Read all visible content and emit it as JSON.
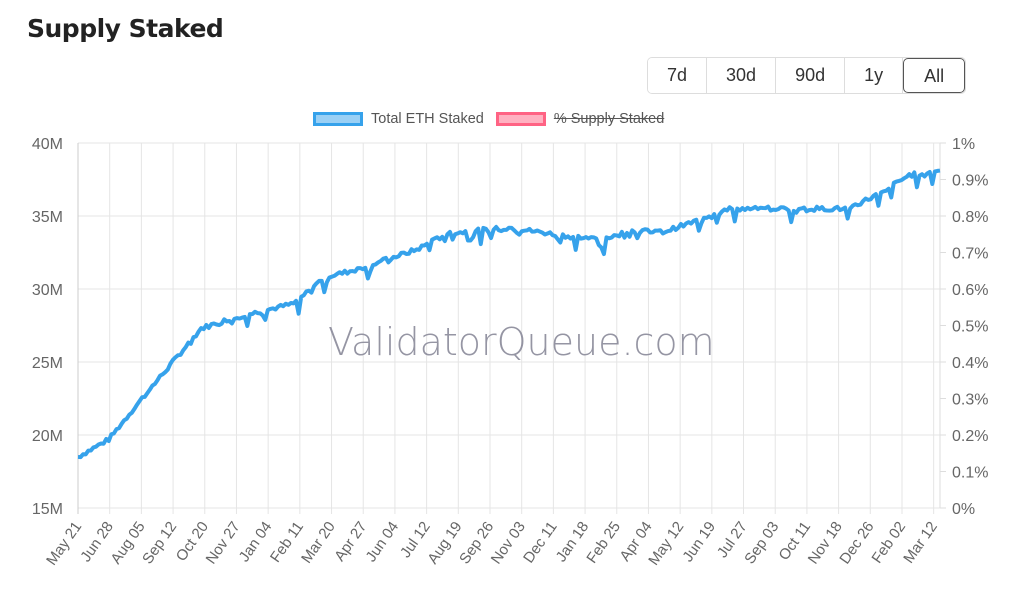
{
  "title": "Supply Staked",
  "range_buttons": [
    "7d",
    "30d",
    "90d",
    "1y",
    "All"
  ],
  "active_range": "All",
  "watermark": "ValidatorQueue.com",
  "colors": {
    "series": "#36a2eb",
    "series_fill": "#9ad0f5",
    "hidden_series": "#ff6384",
    "hidden_fill": "#ffb1c1"
  },
  "chart_data": {
    "type": "line",
    "title": "",
    "legend": {
      "position": "top",
      "entries": [
        {
          "label": "Total ETH Staked",
          "hidden": false
        },
        {
          "label": "% Supply Staked",
          "hidden": true
        }
      ]
    },
    "x_tick_labels": [
      "May 21",
      "Jun 28",
      "Aug 05",
      "Sep 12",
      "Oct 20",
      "Nov 27",
      "Jan 04",
      "Feb 11",
      "Mar 20",
      "Apr 27",
      "Jun 04",
      "Jul 12",
      "Aug 19",
      "Sep 26",
      "Nov 03",
      "Dec 11",
      "Jan 18",
      "Feb 25",
      "Apr 04",
      "May 12",
      "Jun 19",
      "Jul 27",
      "Sep 03",
      "Oct 11",
      "Nov 18",
      "Dec 26",
      "Feb 02",
      "Mar 12"
    ],
    "y_left": {
      "min": 15000000,
      "max": 40000000,
      "ticks": [
        "15M",
        "20M",
        "25M",
        "30M",
        "35M",
        "40M"
      ]
    },
    "y_right": {
      "min": 0,
      "max": 1,
      "ticks": [
        "0%",
        "0.1%",
        "0.2%",
        "0.3%",
        "0.4%",
        "0.5%",
        "0.6%",
        "0.7%",
        "0.8%",
        "0.9%",
        "1%"
      ]
    },
    "grid": true,
    "series": [
      {
        "name": "Total ETH Staked",
        "values": [
          18.5,
          19.7,
          22.3,
          24.8,
          27.3,
          28.0,
          28.5,
          29.0,
          30.8,
          31.3,
          32.0,
          32.7,
          33.8,
          34.0,
          34.2,
          33.9,
          33.6,
          33.4,
          34.0,
          33.9,
          34.6,
          35.5,
          35.5,
          35.5,
          35.5,
          35.5,
          36.5,
          37.8,
          38.1
        ]
      }
    ]
  }
}
